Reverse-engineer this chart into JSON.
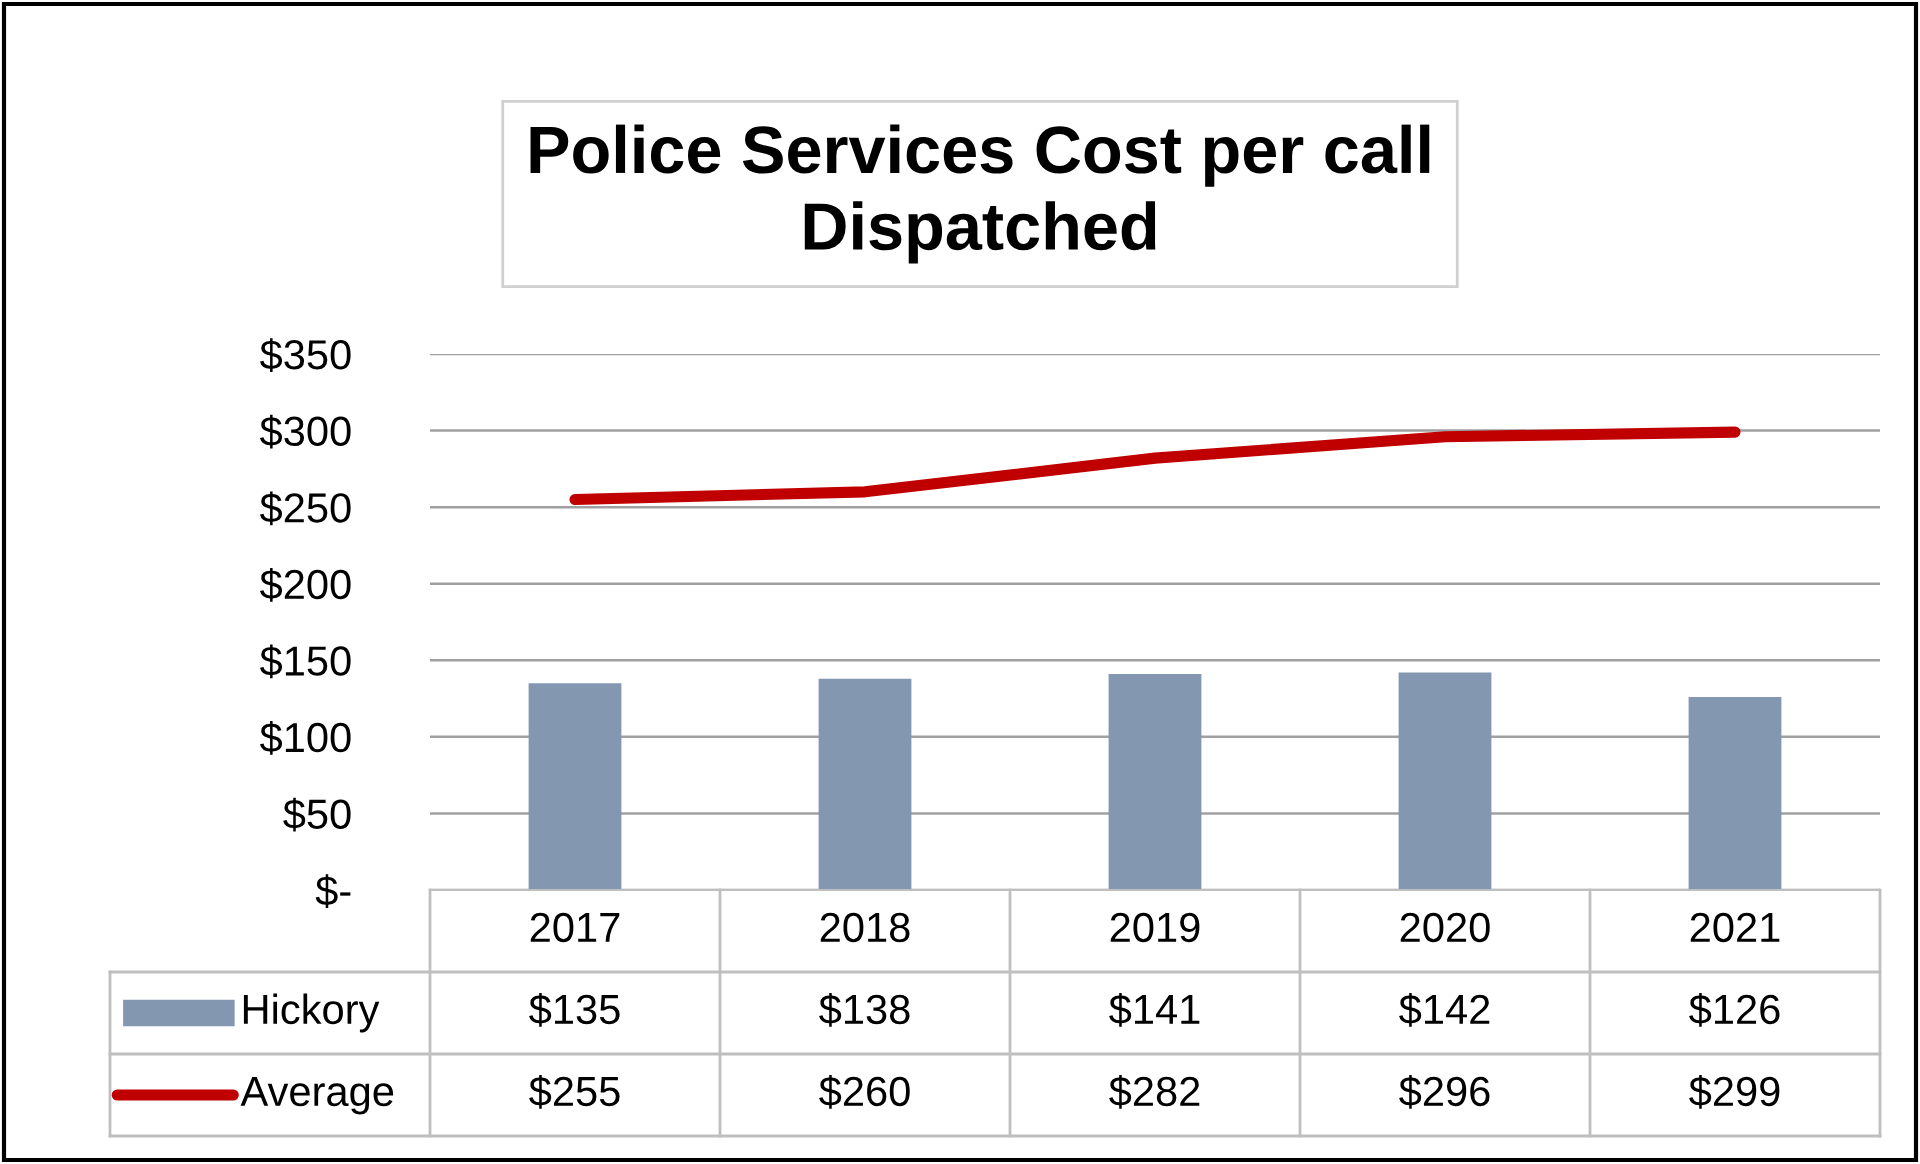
{
  "chart_data": {
    "type": "bar",
    "title": "Police Services Cost per call\nDispatched",
    "categories": [
      "2017",
      "2018",
      "2019",
      "2020",
      "2021"
    ],
    "series": [
      {
        "name": "Hickory",
        "color": "#8497b0",
        "values": [
          135,
          138,
          141,
          142,
          126
        ],
        "value_labels": [
          "$135",
          "$138",
          "$141",
          "$142",
          "$126"
        ]
      },
      {
        "name": "Average",
        "type": "line",
        "color": "#c00000",
        "values": [
          255,
          260,
          282,
          296,
          299
        ],
        "value_labels": [
          "$255",
          "$260",
          "$282",
          "$296",
          "$299"
        ]
      }
    ],
    "ylim": [
      0,
      350
    ],
    "yticks": [
      {
        "value": 0,
        "label": "$-"
      },
      {
        "value": 50,
        "label": "$50"
      },
      {
        "value": 100,
        "label": "$100"
      },
      {
        "value": 150,
        "label": "$150"
      },
      {
        "value": 200,
        "label": "$200"
      },
      {
        "value": 250,
        "label": "$250"
      },
      {
        "value": 300,
        "label": "$300"
      },
      {
        "value": 350,
        "label": "$350"
      }
    ],
    "grid": "y",
    "legend": "bottom",
    "marker": "none",
    "line_style": "solid"
  }
}
